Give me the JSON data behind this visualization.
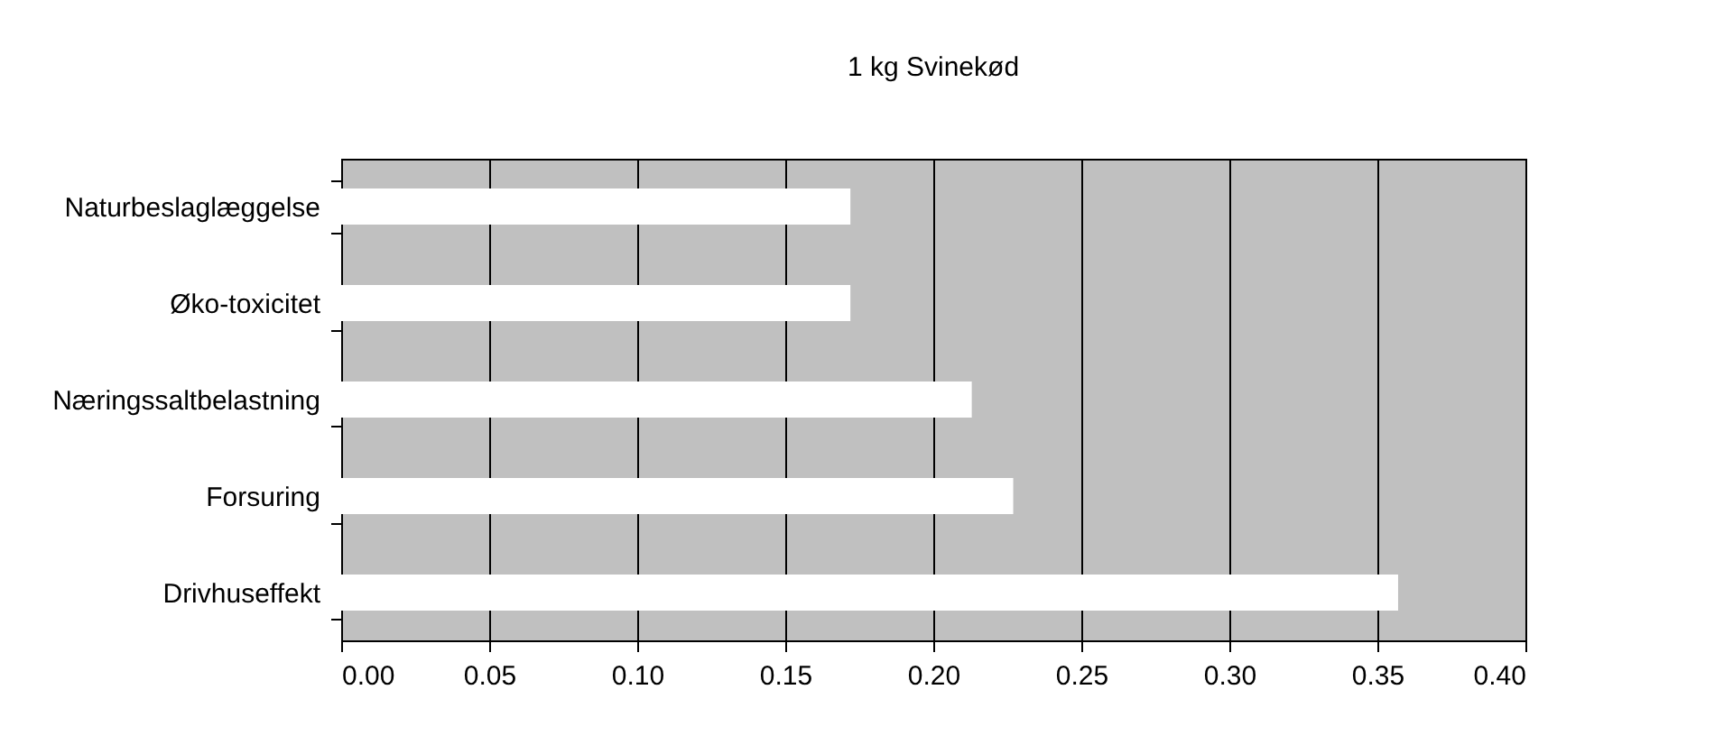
{
  "chart_data": {
    "type": "bar",
    "orientation": "horizontal",
    "title": "1 kg Svinekød",
    "categories": [
      "Naturbeslaglæggelse",
      "Øko-toxicitet",
      "Næringssaltbelastning",
      "Forsuring",
      "Drivhuseffekt"
    ],
    "values": [
      0.172,
      0.172,
      0.213,
      0.227,
      0.357
    ],
    "color": "#ffffff",
    "xlim": [
      0,
      0.4
    ],
    "xticks": [
      {
        "value": 0,
        "label": "0.00"
      },
      {
        "value": 0.05,
        "label": "0.05"
      },
      {
        "value": 0.1,
        "label": "0.10"
      },
      {
        "value": 0.15,
        "label": "0.15"
      },
      {
        "value": 0.2,
        "label": "0.20"
      },
      {
        "value": 0.25,
        "label": "0.25"
      },
      {
        "value": 0.3,
        "label": "0.30"
      },
      {
        "value": 0.35,
        "label": "0.35"
      },
      {
        "value": 0.4,
        "label": "0.40"
      }
    ],
    "grid": "x"
  }
}
